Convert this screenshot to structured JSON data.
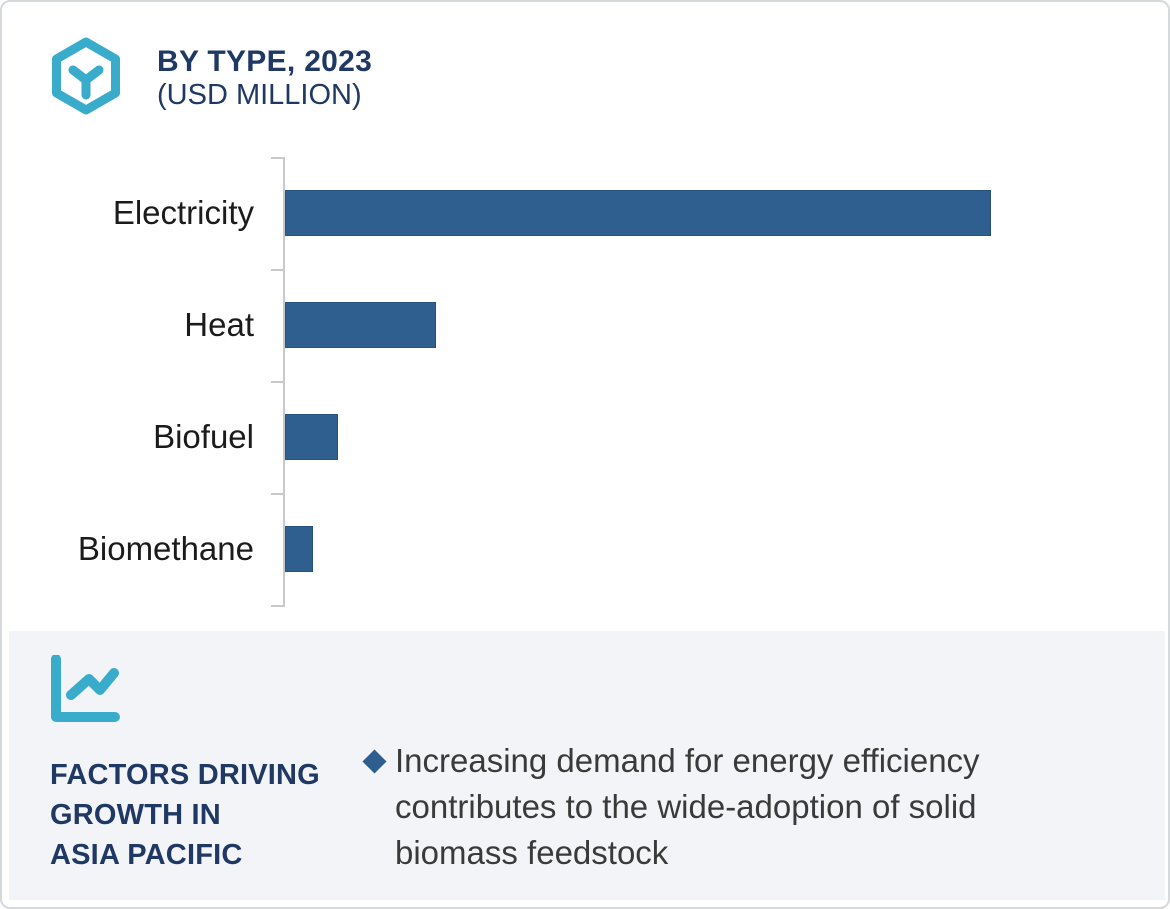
{
  "header": {
    "icon": "hexagon-y-icon",
    "title": "BY TYPE, 2023",
    "subtitle": "(USD MILLION)"
  },
  "chart_data": {
    "type": "bar",
    "orientation": "horizontal",
    "title": "BY TYPE, 2023 (USD MILLION)",
    "categories": [
      "Electricity",
      "Heat",
      "Biofuel",
      "Biomethane"
    ],
    "values": [
      100,
      21.4,
      7.5,
      4.0
    ],
    "values_unit": "percent of longest bar (numeric axis labels not shown in image)",
    "xlabel": "",
    "ylabel": "",
    "grid": false,
    "value_labels_shown": false,
    "legend": null,
    "bar_color": "#2f5f8e",
    "bar_border_color": "#27517e",
    "axis_color": "#c9c9c9"
  },
  "footer": {
    "icon": "line-chart-icon",
    "heading": "FACTORS DRIVING\nGROWTH IN\nASIA PACIFIC",
    "bullet": {
      "marker": "diamond-icon",
      "marker_color": "#2e5e8e",
      "text": "Increasing demand for energy efficiency contributes to the wide-adoption of solid biomass feedstock"
    },
    "background_color": "#f2f4f8"
  },
  "colors": {
    "accent_teal": "#3aaccb",
    "navy": "#1f3864",
    "bar_blue": "#2f5f8e",
    "panel_gray": "#f2f4f8",
    "card_border": "#d6d9dc"
  }
}
